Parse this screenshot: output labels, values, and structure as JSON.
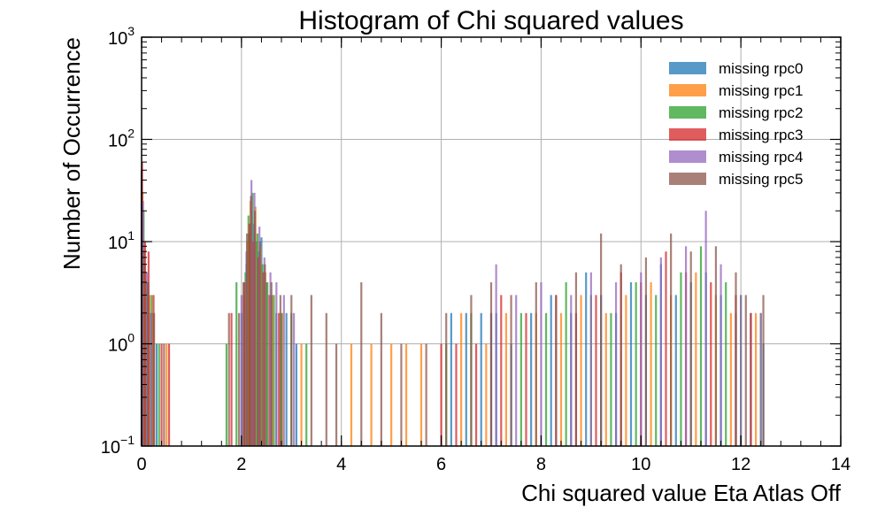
{
  "chart_data": {
    "type": "bar",
    "title": "Histogram of Chi squared values",
    "xlabel": "Chi squared value Eta Atlas Off",
    "ylabel": "Number of Occurrence",
    "xlim": [
      0,
      14
    ],
    "ylim": [
      0.1,
      1000
    ],
    "yscale": "log",
    "grid": true,
    "legend_position": "top-right",
    "x_ticks": [
      "0",
      "2",
      "4",
      "6",
      "8",
      "10",
      "12",
      "14"
    ],
    "y_ticks": [
      {
        "base": "10",
        "exp": "−1"
      },
      {
        "base": "10",
        "exp": "0"
      },
      {
        "base": "10",
        "exp": "1"
      },
      {
        "base": "10",
        "exp": "2"
      },
      {
        "base": "10",
        "exp": "3"
      }
    ],
    "series": [
      {
        "name": "missing rpc0",
        "color": "#1f77b4",
        "values": [
          [
            0.0,
            40
          ],
          [
            0.06,
            6
          ],
          [
            0.12,
            4
          ],
          [
            0.18,
            2
          ],
          [
            0.3,
            1
          ],
          [
            2.0,
            2
          ],
          [
            2.1,
            6
          ],
          [
            2.15,
            12
          ],
          [
            2.2,
            20
          ],
          [
            2.25,
            15
          ],
          [
            2.3,
            10
          ],
          [
            2.35,
            8
          ],
          [
            2.4,
            11
          ],
          [
            2.5,
            4
          ],
          [
            2.6,
            3
          ],
          [
            2.7,
            2
          ],
          [
            2.9,
            2
          ],
          [
            3.1,
            1
          ],
          [
            6.2,
            2
          ],
          [
            6.5,
            2
          ],
          [
            6.8,
            2
          ],
          [
            7.1,
            2
          ],
          [
            7.4,
            1
          ],
          [
            7.8,
            2
          ],
          [
            8.2,
            3
          ],
          [
            8.6,
            2
          ],
          [
            8.9,
            5
          ],
          [
            9.2,
            3
          ],
          [
            9.5,
            2
          ],
          [
            9.8,
            4
          ],
          [
            10.1,
            3
          ],
          [
            10.4,
            6
          ],
          [
            10.7,
            3
          ],
          [
            11.0,
            4
          ],
          [
            11.3,
            5
          ],
          [
            11.6,
            3
          ],
          [
            11.9,
            2
          ],
          [
            12.2,
            2
          ],
          [
            12.45,
            1
          ]
        ]
      },
      {
        "name": "missing rpc1",
        "color": "#ff7f0e",
        "values": [
          [
            0.02,
            30
          ],
          [
            0.08,
            5
          ],
          [
            0.16,
            3
          ],
          [
            0.22,
            2
          ],
          [
            0.5,
            1
          ],
          [
            2.05,
            3
          ],
          [
            2.12,
            10
          ],
          [
            2.18,
            25
          ],
          [
            2.28,
            22
          ],
          [
            2.38,
            9
          ],
          [
            2.48,
            5
          ],
          [
            2.62,
            3
          ],
          [
            2.82,
            2
          ],
          [
            3.2,
            1
          ],
          [
            4.2,
            1
          ],
          [
            4.6,
            1
          ],
          [
            5.0,
            1
          ],
          [
            5.3,
            1
          ],
          [
            5.6,
            1
          ],
          [
            6.4,
            2
          ],
          [
            6.9,
            1
          ],
          [
            7.3,
            2
          ],
          [
            7.9,
            2
          ],
          [
            8.4,
            2
          ],
          [
            8.8,
            3
          ],
          [
            9.3,
            2
          ],
          [
            9.7,
            3
          ],
          [
            10.2,
            4
          ],
          [
            10.6,
            3
          ],
          [
            11.1,
            5
          ],
          [
            11.5,
            3
          ],
          [
            11.8,
            2
          ],
          [
            12.3,
            2
          ]
        ]
      },
      {
        "name": "missing rpc2",
        "color": "#2ca02c",
        "values": [
          [
            0.04,
            20
          ],
          [
            0.1,
            4
          ],
          [
            0.2,
            3
          ],
          [
            0.35,
            1
          ],
          [
            1.7,
            1
          ],
          [
            1.9,
            4
          ],
          [
            2.08,
            5
          ],
          [
            2.14,
            18
          ],
          [
            2.22,
            30
          ],
          [
            2.32,
            12
          ],
          [
            2.42,
            6
          ],
          [
            2.52,
            4
          ],
          [
            2.65,
            3
          ],
          [
            2.8,
            2
          ],
          [
            3.0,
            2
          ],
          [
            3.3,
            1
          ],
          [
            6.1,
            1
          ],
          [
            6.6,
            2
          ],
          [
            7.0,
            2
          ],
          [
            7.6,
            2
          ],
          [
            8.1,
            2
          ],
          [
            8.5,
            4
          ],
          [
            9.0,
            3
          ],
          [
            9.4,
            2
          ],
          [
            9.9,
            4
          ],
          [
            10.3,
            3
          ],
          [
            10.8,
            5
          ],
          [
            11.2,
            9
          ],
          [
            11.7,
            4
          ],
          [
            12.0,
            3
          ],
          [
            12.4,
            2
          ]
        ]
      },
      {
        "name": "missing rpc3",
        "color": "#d62728",
        "values": [
          [
            0.01,
            60
          ],
          [
            0.07,
            10
          ],
          [
            0.14,
            8
          ],
          [
            0.24,
            3
          ],
          [
            0.4,
            1
          ],
          [
            0.55,
            1
          ],
          [
            1.8,
            2
          ],
          [
            2.06,
            4
          ],
          [
            2.16,
            15
          ],
          [
            2.24,
            10
          ],
          [
            2.34,
            7
          ],
          [
            2.44,
            5
          ],
          [
            2.56,
            3
          ],
          [
            2.75,
            2
          ],
          [
            6.0,
            1
          ],
          [
            6.3,
            1
          ],
          [
            6.7,
            1
          ],
          [
            7.2,
            3
          ],
          [
            7.7,
            2
          ],
          [
            8.3,
            3
          ],
          [
            8.7,
            2
          ],
          [
            9.1,
            3
          ],
          [
            9.6,
            5
          ],
          [
            10.0,
            4
          ],
          [
            10.5,
            8
          ],
          [
            10.9,
            5
          ],
          [
            11.4,
            4
          ],
          [
            11.9,
            3
          ],
          [
            12.2,
            2
          ]
        ]
      },
      {
        "name": "missing rpc4",
        "color": "#9467bd",
        "values": [
          [
            0.03,
            25
          ],
          [
            0.11,
            5
          ],
          [
            0.19,
            2
          ],
          [
            2.0,
            3
          ],
          [
            2.1,
            8
          ],
          [
            2.2,
            40
          ],
          [
            2.26,
            30
          ],
          [
            2.36,
            14
          ],
          [
            2.46,
            7
          ],
          [
            2.58,
            5
          ],
          [
            2.7,
            4
          ],
          [
            2.85,
            3
          ],
          [
            3.05,
            2
          ],
          [
            7.0,
            2
          ],
          [
            7.1,
            6
          ],
          [
            7.5,
            3
          ],
          [
            8.0,
            4
          ],
          [
            8.6,
            3
          ],
          [
            9.0,
            5
          ],
          [
            9.5,
            4
          ],
          [
            10.0,
            5
          ],
          [
            10.4,
            7
          ],
          [
            10.9,
            9
          ],
          [
            11.3,
            20
          ],
          [
            11.6,
            6
          ],
          [
            12.0,
            3
          ],
          [
            12.4,
            2
          ]
        ]
      },
      {
        "name": "missing rpc5",
        "color": "#8c564b",
        "values": [
          [
            0.0,
            50
          ],
          [
            0.05,
            8
          ],
          [
            0.13,
            4
          ],
          [
            0.25,
            2
          ],
          [
            0.45,
            1
          ],
          [
            1.75,
            2
          ],
          [
            1.95,
            2
          ],
          [
            2.04,
            4
          ],
          [
            2.11,
            12
          ],
          [
            2.19,
            28
          ],
          [
            2.27,
            20
          ],
          [
            2.37,
            10
          ],
          [
            2.47,
            6
          ],
          [
            2.6,
            4
          ],
          [
            2.78,
            3
          ],
          [
            3.0,
            3
          ],
          [
            3.4,
            3
          ],
          [
            3.7,
            2
          ],
          [
            3.9,
            1
          ],
          [
            4.4,
            4
          ],
          [
            4.8,
            2
          ],
          [
            5.2,
            1
          ],
          [
            5.7,
            1
          ],
          [
            6.1,
            2
          ],
          [
            6.6,
            3
          ],
          [
            7.0,
            4
          ],
          [
            7.4,
            3
          ],
          [
            7.9,
            4
          ],
          [
            8.3,
            3
          ],
          [
            8.7,
            5
          ],
          [
            9.2,
            12
          ],
          [
            9.6,
            6
          ],
          [
            10.1,
            7
          ],
          [
            10.6,
            12
          ],
          [
            11.0,
            8
          ],
          [
            11.5,
            9
          ],
          [
            11.9,
            5
          ],
          [
            12.1,
            3
          ],
          [
            12.45,
            3
          ]
        ]
      }
    ]
  }
}
